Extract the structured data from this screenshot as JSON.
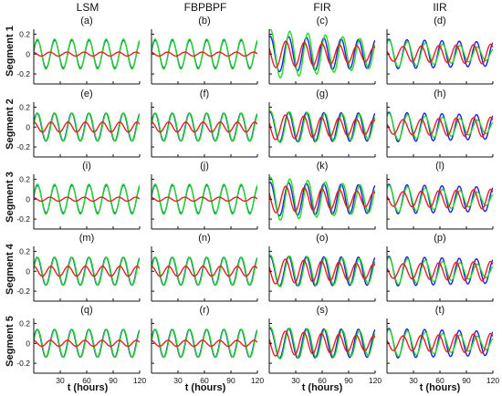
{
  "colors": {
    "blue": "#1f1fe0",
    "green": "#22dd22",
    "red": "#ee1c1c",
    "axis": "#111111"
  },
  "chart_data": {
    "type": "line",
    "layout": "5x4 grid of small multiples",
    "column_titles": [
      "LSM",
      "FBPBPF",
      "FIR",
      "IIR"
    ],
    "row_titles": [
      "Segment 1",
      "Segment 2",
      "Segment 3",
      "Segment 4",
      "Segment 5"
    ],
    "panel_labels": [
      "(a)",
      "(b)",
      "(c)",
      "(d)",
      "(e)",
      "(f)",
      "(g)",
      "(h)",
      "(i)",
      "(j)",
      "(k)",
      "(l)",
      "(m)",
      "(n)",
      "(o)",
      "(p)",
      "(q)",
      "(r)",
      "(s)",
      "(t)"
    ],
    "xlabel": "t (hours)",
    "xlim": [
      0,
      120
    ],
    "xticks": [
      30,
      60,
      90,
      120
    ],
    "ylim": [
      -0.3,
      0.25
    ],
    "yticks": [
      0.2,
      0,
      -0.2
    ],
    "ytick_labels": [
      "0.2",
      "0",
      "-0.2"
    ],
    "series_colors": [
      "blue",
      "green",
      "red"
    ],
    "period_hours": 19.5,
    "panels": [
      {
        "label": "(a)",
        "blue": {
          "amp": 0.14,
          "amp2": 0.14,
          "phase": 0.2,
          "warp": 0.0
        },
        "green": {
          "amp": 0.15,
          "amp2": 0.15,
          "phase": 0.25,
          "warp": 0.0
        },
        "red": {
          "amp": 0.02,
          "amp2": 0.02,
          "phase": 2.0,
          "warp": 0.0
        }
      },
      {
        "label": "(b)",
        "blue": {
          "amp": 0.14,
          "amp2": 0.14,
          "phase": 0.2,
          "warp": 0.0
        },
        "green": {
          "amp": 0.15,
          "amp2": 0.15,
          "phase": 0.25,
          "warp": 0.0
        },
        "red": {
          "amp": 0.02,
          "amp2": 0.02,
          "phase": 2.0,
          "warp": 0.0
        }
      },
      {
        "label": "(c)",
        "blue": {
          "amp": 0.18,
          "amp2": 0.14,
          "phase": 0.4,
          "warp": 0.9
        },
        "green": {
          "amp": 0.25,
          "amp2": 0.14,
          "phase": -0.2,
          "warp": 1.4
        },
        "red": {
          "amp": 0.14,
          "amp2": 0.07,
          "phase": 1.0,
          "warp": 1.7
        }
      },
      {
        "label": "(d)",
        "blue": {
          "amp": 0.15,
          "amp2": 0.12,
          "phase": 0.3,
          "warp": 0.6
        },
        "green": {
          "amp": 0.14,
          "amp2": 0.06,
          "phase": 0.0,
          "warp": 0.9
        },
        "red": {
          "amp": 0.07,
          "amp2": 0.1,
          "phase": 1.4,
          "warp": 1.3
        }
      },
      {
        "label": "(e)",
        "blue": {
          "amp": 0.14,
          "amp2": 0.14,
          "phase": 0.3,
          "warp": 0.0
        },
        "green": {
          "amp": 0.14,
          "amp2": 0.14,
          "phase": 0.15,
          "warp": 0.0
        },
        "red": {
          "amp": 0.05,
          "amp2": 0.05,
          "phase": 1.6,
          "warp": 0.0
        }
      },
      {
        "label": "(f)",
        "blue": {
          "amp": 0.14,
          "amp2": 0.14,
          "phase": 0.3,
          "warp": 0.0
        },
        "green": {
          "amp": 0.14,
          "amp2": 0.14,
          "phase": 0.15,
          "warp": 0.0
        },
        "red": {
          "amp": 0.05,
          "amp2": 0.05,
          "phase": 1.6,
          "warp": 0.0
        }
      },
      {
        "label": "(g)",
        "blue": {
          "amp": 0.15,
          "amp2": 0.14,
          "phase": 0.4,
          "warp": 0.9
        },
        "green": {
          "amp": 0.16,
          "amp2": 0.12,
          "phase": 0.0,
          "warp": 1.2
        },
        "red": {
          "amp": 0.13,
          "amp2": 0.07,
          "phase": 1.2,
          "warp": 1.6
        }
      },
      {
        "label": "(h)",
        "blue": {
          "amp": 0.15,
          "amp2": 0.12,
          "phase": 0.3,
          "warp": 0.6
        },
        "green": {
          "amp": 0.14,
          "amp2": 0.06,
          "phase": 0.0,
          "warp": 0.9
        },
        "red": {
          "amp": 0.07,
          "amp2": 0.1,
          "phase": 1.4,
          "warp": 1.3
        }
      },
      {
        "label": "(i)",
        "blue": {
          "amp": 0.14,
          "amp2": 0.14,
          "phase": 0.2,
          "warp": 0.0
        },
        "green": {
          "amp": 0.15,
          "amp2": 0.15,
          "phase": 0.25,
          "warp": 0.0
        },
        "red": {
          "amp": 0.02,
          "amp2": 0.02,
          "phase": 2.0,
          "warp": 0.0
        }
      },
      {
        "label": "(j)",
        "blue": {
          "amp": 0.14,
          "amp2": 0.14,
          "phase": 0.2,
          "warp": 0.0
        },
        "green": {
          "amp": 0.15,
          "amp2": 0.15,
          "phase": 0.25,
          "warp": 0.0
        },
        "red": {
          "amp": 0.02,
          "amp2": 0.02,
          "phase": 2.0,
          "warp": 0.0
        }
      },
      {
        "label": "(k)",
        "blue": {
          "amp": 0.17,
          "amp2": 0.14,
          "phase": 0.4,
          "warp": 0.9
        },
        "green": {
          "amp": 0.22,
          "amp2": 0.13,
          "phase": -0.2,
          "warp": 1.4
        },
        "red": {
          "amp": 0.14,
          "amp2": 0.07,
          "phase": 1.0,
          "warp": 1.7
        }
      },
      {
        "label": "(l)",
        "blue": {
          "amp": 0.15,
          "amp2": 0.12,
          "phase": 0.3,
          "warp": 0.6
        },
        "green": {
          "amp": 0.14,
          "amp2": 0.06,
          "phase": 0.0,
          "warp": 0.9
        },
        "red": {
          "amp": 0.07,
          "amp2": 0.1,
          "phase": 1.4,
          "warp": 1.3
        }
      },
      {
        "label": "(m)",
        "blue": {
          "amp": 0.14,
          "amp2": 0.14,
          "phase": 0.3,
          "warp": 0.0
        },
        "green": {
          "amp": 0.14,
          "amp2": 0.14,
          "phase": 0.15,
          "warp": 0.0
        },
        "red": {
          "amp": 0.05,
          "amp2": 0.05,
          "phase": 1.6,
          "warp": 0.0
        }
      },
      {
        "label": "(n)",
        "blue": {
          "amp": 0.14,
          "amp2": 0.14,
          "phase": 0.3,
          "warp": 0.0
        },
        "green": {
          "amp": 0.14,
          "amp2": 0.14,
          "phase": 0.15,
          "warp": 0.0
        },
        "red": {
          "amp": 0.05,
          "amp2": 0.05,
          "phase": 1.6,
          "warp": 0.0
        }
      },
      {
        "label": "(o)",
        "blue": {
          "amp": 0.15,
          "amp2": 0.14,
          "phase": 0.4,
          "warp": 0.9
        },
        "green": {
          "amp": 0.16,
          "amp2": 0.12,
          "phase": 0.0,
          "warp": 1.2
        },
        "red": {
          "amp": 0.13,
          "amp2": 0.07,
          "phase": 1.2,
          "warp": 1.6
        }
      },
      {
        "label": "(p)",
        "blue": {
          "amp": 0.15,
          "amp2": 0.12,
          "phase": 0.3,
          "warp": 0.6
        },
        "green": {
          "amp": 0.14,
          "amp2": 0.06,
          "phase": 0.0,
          "warp": 0.9
        },
        "red": {
          "amp": 0.07,
          "amp2": 0.1,
          "phase": 1.4,
          "warp": 1.3
        }
      },
      {
        "label": "(q)",
        "blue": {
          "amp": 0.14,
          "amp2": 0.14,
          "phase": 0.3,
          "warp": 0.0
        },
        "green": {
          "amp": 0.14,
          "amp2": 0.14,
          "phase": 0.15,
          "warp": 0.0
        },
        "red": {
          "amp": 0.03,
          "amp2": 0.03,
          "phase": 1.8,
          "warp": 0.0
        }
      },
      {
        "label": "(r)",
        "blue": {
          "amp": 0.14,
          "amp2": 0.14,
          "phase": 0.3,
          "warp": 0.0
        },
        "green": {
          "amp": 0.14,
          "amp2": 0.14,
          "phase": 0.15,
          "warp": 0.0
        },
        "red": {
          "amp": 0.03,
          "amp2": 0.03,
          "phase": 1.8,
          "warp": 0.0
        }
      },
      {
        "label": "(s)",
        "blue": {
          "amp": 0.15,
          "amp2": 0.14,
          "phase": 0.4,
          "warp": 0.9
        },
        "green": {
          "amp": 0.16,
          "amp2": 0.12,
          "phase": 0.0,
          "warp": 1.2
        },
        "red": {
          "amp": 0.13,
          "amp2": 0.07,
          "phase": 1.2,
          "warp": 1.6
        }
      },
      {
        "label": "(t)",
        "blue": {
          "amp": 0.15,
          "amp2": 0.12,
          "phase": 0.3,
          "warp": 0.6
        },
        "green": {
          "amp": 0.14,
          "amp2": 0.06,
          "phase": 0.0,
          "warp": 0.9
        },
        "red": {
          "amp": 0.07,
          "amp2": 0.1,
          "phase": 1.4,
          "warp": 1.3
        }
      }
    ]
  }
}
